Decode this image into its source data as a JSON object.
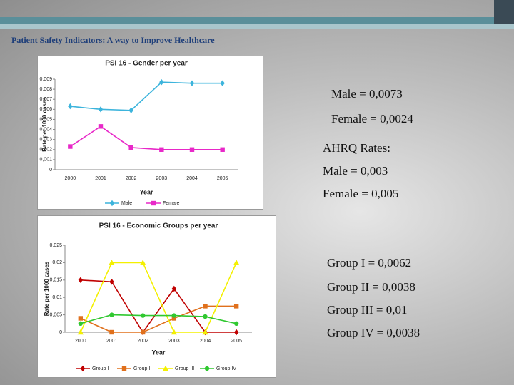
{
  "header": {
    "title": "Patient Safety Indicators: A way to Improve Healthcare"
  },
  "notes": {
    "gender": [
      "Male = 0,0073",
      "Female = 0,0024"
    ],
    "ahrq": [
      "AHRQ Rates:",
      "Male = 0,003",
      "Female = 0,005"
    ],
    "groups": [
      "Group I = 0,0062",
      "Group II = 0,0038",
      "Group III = 0,01",
      "Group IV = 0,0038"
    ]
  },
  "chart_data": [
    {
      "type": "line",
      "title": "PSI 16 - Gender per year",
      "x_label": "Year",
      "y_label": "Rate per 1000 cases",
      "categories": [
        "2000",
        "2001",
        "2002",
        "2003",
        "2004",
        "2005"
      ],
      "ylim": [
        0,
        0.009
      ],
      "yticks": [
        0,
        {
          "value": 0.001,
          "label": "0,001"
        },
        {
          "value": 0.002,
          "label": "0,002"
        },
        {
          "value": 0.003,
          "label": "0,003"
        },
        {
          "value": 0.004,
          "label": "0,004"
        },
        {
          "value": 0.005,
          "label": "0,005"
        },
        {
          "value": 0.006,
          "label": "0,006"
        },
        {
          "value": 0.007,
          "label": "0,007"
        },
        {
          "value": 0.008,
          "label": "0,008"
        },
        {
          "value": 0.009,
          "label": "0,009"
        }
      ],
      "legend": "bottom",
      "series": [
        {
          "name": "Male",
          "color": "#3cb4dc",
          "marker": "diamond",
          "values": [
            0.0063,
            0.006,
            0.0059,
            0.0087,
            0.0086,
            0.0086
          ]
        },
        {
          "name": "Female",
          "color": "#e828c8",
          "marker": "square",
          "values": [
            0.0023,
            0.0043,
            0.0022,
            0.002,
            0.002,
            0.002
          ]
        }
      ]
    },
    {
      "type": "line",
      "title": "PSI 16 - Economic Groups per year",
      "x_label": "Year",
      "y_label": "Rate per 1000 cases",
      "categories": [
        "2000",
        "2001",
        "2002",
        "2003",
        "2004",
        "2005"
      ],
      "ylim": [
        0,
        0.025
      ],
      "yticks": [
        0,
        {
          "value": 0.005,
          "label": "0,005"
        },
        {
          "value": 0.01,
          "label": "0,01"
        },
        {
          "value": 0.015,
          "label": "0,015"
        },
        {
          "value": 0.02,
          "label": "0,02"
        },
        {
          "value": 0.025,
          "label": "0,025"
        }
      ],
      "legend": "bottom",
      "series": [
        {
          "name": "Group I",
          "color": "#c00000",
          "marker": "diamond",
          "values": [
            0.015,
            0.0145,
            0,
            0.0125,
            0,
            0
          ]
        },
        {
          "name": "Group II",
          "color": "#e0701c",
          "marker": "square",
          "values": [
            0.004,
            0,
            0,
            0.004,
            0.0075,
            0.0075
          ]
        },
        {
          "name": "Group III",
          "color": "#f4f000",
          "marker": "triangle",
          "values": [
            0,
            0.02,
            0.02,
            0,
            0,
            0.02
          ]
        },
        {
          "name": "Group IV",
          "color": "#30c830",
          "marker": "circle",
          "values": [
            0.0025,
            0.005,
            0.0048,
            0.0048,
            0.0045,
            0.0025
          ]
        }
      ]
    }
  ]
}
